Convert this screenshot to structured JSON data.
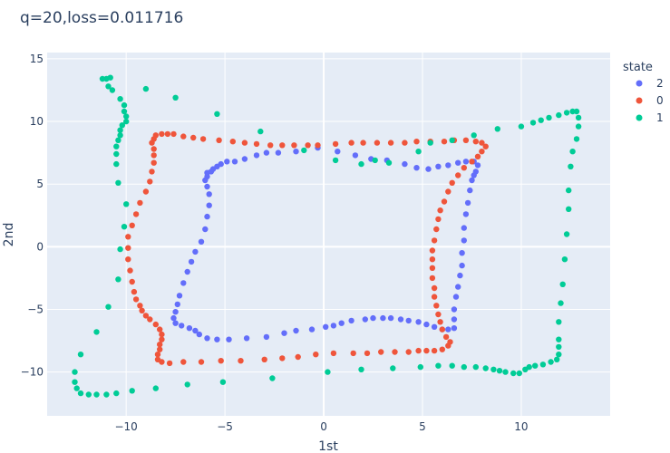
{
  "chart_data": {
    "type": "scatter",
    "title": "q=20,loss=0.011716",
    "xlabel": "1st",
    "ylabel": "2nd",
    "xlim": [
      -14,
      14.5
    ],
    "ylim": [
      -13.5,
      15.5
    ],
    "xticks": [
      -10,
      -5,
      0,
      5,
      10
    ],
    "yticks": [
      -10,
      -5,
      0,
      5,
      10,
      15
    ],
    "grid": true,
    "legend": {
      "title": "state",
      "placement": "right"
    },
    "series": [
      {
        "name": "2",
        "color": "#636efa",
        "points": [
          [
            -5.9,
            5.9
          ],
          [
            -5.7,
            6.0
          ],
          [
            -5.6,
            6.2
          ],
          [
            -5.4,
            6.4
          ],
          [
            -5.2,
            6.6
          ],
          [
            -4.9,
            6.8
          ],
          [
            -4.5,
            6.8
          ],
          [
            -4.0,
            7.0
          ],
          [
            -3.4,
            7.3
          ],
          [
            -2.9,
            7.5
          ],
          [
            -2.3,
            7.5
          ],
          [
            -1.4,
            7.6
          ],
          [
            -0.3,
            7.9
          ],
          [
            0.7,
            7.6
          ],
          [
            1.6,
            7.3
          ],
          [
            2.4,
            7.0
          ],
          [
            3.2,
            6.9
          ],
          [
            4.1,
            6.6
          ],
          [
            4.7,
            6.3
          ],
          [
            5.3,
            6.2
          ],
          [
            5.8,
            6.4
          ],
          [
            6.3,
            6.5
          ],
          [
            6.8,
            6.7
          ],
          [
            7.2,
            6.8
          ],
          [
            7.6,
            6.8
          ],
          [
            7.8,
            6.5
          ],
          [
            7.7,
            6.0
          ],
          [
            7.6,
            5.7
          ],
          [
            7.5,
            5.3
          ],
          [
            7.4,
            4.5
          ],
          [
            7.3,
            3.5
          ],
          [
            7.2,
            2.6
          ],
          [
            7.1,
            1.5
          ],
          [
            7.1,
            0.5
          ],
          [
            7.0,
            -0.5
          ],
          [
            7.0,
            -1.5
          ],
          [
            6.9,
            -2.3
          ],
          [
            6.8,
            -3.2
          ],
          [
            6.7,
            -4.0
          ],
          [
            6.6,
            -5.0
          ],
          [
            6.6,
            -5.8
          ],
          [
            6.6,
            -6.5
          ],
          [
            6.3,
            -6.6
          ],
          [
            6.0,
            -6.6
          ],
          [
            5.6,
            -6.4
          ],
          [
            5.2,
            -6.2
          ],
          [
            4.8,
            -6.0
          ],
          [
            4.3,
            -5.9
          ],
          [
            3.9,
            -5.8
          ],
          [
            3.4,
            -5.7
          ],
          [
            3.0,
            -5.7
          ],
          [
            2.5,
            -5.7
          ],
          [
            2.1,
            -5.8
          ],
          [
            1.4,
            -5.9
          ],
          [
            0.9,
            -6.1
          ],
          [
            0.5,
            -6.3
          ],
          [
            0.1,
            -6.4
          ],
          [
            -0.6,
            -6.6
          ],
          [
            -1.4,
            -6.7
          ],
          [
            -2.0,
            -6.9
          ],
          [
            -2.9,
            -7.2
          ],
          [
            -3.9,
            -7.3
          ],
          [
            -4.8,
            -7.4
          ],
          [
            -5.4,
            -7.4
          ],
          [
            -5.9,
            -7.3
          ],
          [
            -6.3,
            -7.0
          ],
          [
            -6.5,
            -6.7
          ],
          [
            -6.8,
            -6.5
          ],
          [
            -7.2,
            -6.3
          ],
          [
            -7.5,
            -6.1
          ],
          [
            -7.6,
            -5.7
          ],
          [
            -7.5,
            -5.2
          ],
          [
            -7.4,
            -4.6
          ],
          [
            -7.3,
            -3.9
          ],
          [
            -7.1,
            -2.9
          ],
          [
            -6.9,
            -2.0
          ],
          [
            -6.7,
            -1.2
          ],
          [
            -6.5,
            -0.4
          ],
          [
            -6.2,
            0.4
          ],
          [
            -6.0,
            1.4
          ],
          [
            -5.9,
            2.4
          ],
          [
            -5.8,
            3.3
          ],
          [
            -5.8,
            4.2
          ],
          [
            -5.9,
            4.8
          ],
          [
            -6.0,
            5.3
          ],
          [
            -5.9,
            5.6
          ]
        ]
      },
      {
        "name": "0",
        "color": "#ef553b",
        "points": [
          [
            -8.6,
            8.6
          ],
          [
            -8.5,
            8.9
          ],
          [
            -8.2,
            9.0
          ],
          [
            -7.9,
            9.0
          ],
          [
            -7.6,
            9.0
          ],
          [
            -7.1,
            8.8
          ],
          [
            -6.6,
            8.7
          ],
          [
            -6.1,
            8.6
          ],
          [
            -5.3,
            8.5
          ],
          [
            -4.6,
            8.4
          ],
          [
            -4.0,
            8.3
          ],
          [
            -3.4,
            8.2
          ],
          [
            -2.7,
            8.1
          ],
          [
            -2.1,
            8.1
          ],
          [
            -1.5,
            8.1
          ],
          [
            -0.8,
            8.1
          ],
          [
            -0.3,
            8.1
          ],
          [
            0.6,
            8.2
          ],
          [
            1.4,
            8.3
          ],
          [
            2.0,
            8.3
          ],
          [
            2.7,
            8.3
          ],
          [
            3.4,
            8.3
          ],
          [
            4.1,
            8.3
          ],
          [
            4.7,
            8.4
          ],
          [
            5.4,
            8.4
          ],
          [
            6.1,
            8.4
          ],
          [
            6.6,
            8.5
          ],
          [
            7.2,
            8.5
          ],
          [
            7.7,
            8.4
          ],
          [
            8.0,
            8.3
          ],
          [
            8.2,
            8.0
          ],
          [
            8.0,
            7.6
          ],
          [
            7.8,
            7.2
          ],
          [
            7.5,
            6.8
          ],
          [
            7.1,
            6.3
          ],
          [
            6.8,
            5.7
          ],
          [
            6.5,
            5.1
          ],
          [
            6.3,
            4.4
          ],
          [
            6.1,
            3.6
          ],
          [
            5.9,
            2.9
          ],
          [
            5.8,
            2.2
          ],
          [
            5.7,
            1.4
          ],
          [
            5.6,
            0.5
          ],
          [
            5.5,
            -0.3
          ],
          [
            5.5,
            -1.0
          ],
          [
            5.5,
            -1.7
          ],
          [
            5.5,
            -2.5
          ],
          [
            5.6,
            -3.3
          ],
          [
            5.6,
            -4.0
          ],
          [
            5.7,
            -4.7
          ],
          [
            5.8,
            -5.4
          ],
          [
            5.9,
            -6.0
          ],
          [
            6.0,
            -6.6
          ],
          [
            6.2,
            -7.2
          ],
          [
            6.4,
            -7.6
          ],
          [
            6.3,
            -7.9
          ],
          [
            6.0,
            -8.2
          ],
          [
            5.6,
            -8.3
          ],
          [
            5.2,
            -8.3
          ],
          [
            4.8,
            -8.3
          ],
          [
            4.3,
            -8.4
          ],
          [
            3.6,
            -8.4
          ],
          [
            2.9,
            -8.4
          ],
          [
            2.2,
            -8.5
          ],
          [
            1.5,
            -8.5
          ],
          [
            0.5,
            -8.5
          ],
          [
            -0.4,
            -8.6
          ],
          [
            -1.3,
            -8.8
          ],
          [
            -2.1,
            -8.9
          ],
          [
            -3.0,
            -9.0
          ],
          [
            -4.2,
            -9.1
          ],
          [
            -5.2,
            -9.1
          ],
          [
            -6.2,
            -9.2
          ],
          [
            -7.1,
            -9.2
          ],
          [
            -7.8,
            -9.3
          ],
          [
            -8.2,
            -9.2
          ],
          [
            -8.4,
            -9.0
          ],
          [
            -8.4,
            -8.6
          ],
          [
            -8.3,
            -8.2
          ],
          [
            -8.3,
            -7.8
          ],
          [
            -8.2,
            -7.4
          ],
          [
            -8.2,
            -7.0
          ],
          [
            -8.3,
            -6.6
          ],
          [
            -8.5,
            -6.2
          ],
          [
            -8.8,
            -5.8
          ],
          [
            -9.0,
            -5.5
          ],
          [
            -9.2,
            -5.1
          ],
          [
            -9.3,
            -4.7
          ],
          [
            -9.5,
            -4.2
          ],
          [
            -9.6,
            -3.6
          ],
          [
            -9.7,
            -2.8
          ],
          [
            -9.8,
            -1.9
          ],
          [
            -9.9,
            -1.0
          ],
          [
            -9.9,
            -0.1
          ],
          [
            -9.9,
            0.8
          ],
          [
            -9.7,
            1.7
          ],
          [
            -9.5,
            2.6
          ],
          [
            -9.3,
            3.5
          ],
          [
            -9.0,
            4.4
          ],
          [
            -8.8,
            5.2
          ],
          [
            -8.7,
            6.0
          ],
          [
            -8.6,
            6.7
          ],
          [
            -8.6,
            7.3
          ],
          [
            -8.6,
            7.8
          ],
          [
            -8.7,
            8.3
          ]
        ]
      },
      {
        "name": "1",
        "color": "#00cc96",
        "points": [
          [
            -11.2,
            13.4
          ],
          [
            -11.0,
            13.4
          ],
          [
            -10.8,
            13.5
          ],
          [
            -10.9,
            12.8
          ],
          [
            -10.7,
            12.5
          ],
          [
            -10.3,
            11.8
          ],
          [
            -10.1,
            11.3
          ],
          [
            -10.1,
            10.8
          ],
          [
            -10.0,
            10.4
          ],
          [
            -10.0,
            10.0
          ],
          [
            -10.2,
            9.7
          ],
          [
            -10.3,
            9.3
          ],
          [
            -10.3,
            8.9
          ],
          [
            -10.4,
            8.5
          ],
          [
            -10.5,
            8.0
          ],
          [
            -10.5,
            7.4
          ],
          [
            -10.5,
            6.6
          ],
          [
            -10.4,
            5.1
          ],
          [
            -10.0,
            3.4
          ],
          [
            -10.1,
            1.6
          ],
          [
            -10.3,
            -0.2
          ],
          [
            -10.4,
            -2.6
          ],
          [
            -10.9,
            -4.8
          ],
          [
            -11.5,
            -6.8
          ],
          [
            -12.3,
            -8.6
          ],
          [
            -12.6,
            -10.0
          ],
          [
            -12.6,
            -10.8
          ],
          [
            -12.5,
            -11.3
          ],
          [
            -12.3,
            -11.7
          ],
          [
            -11.9,
            -11.8
          ],
          [
            -11.5,
            -11.8
          ],
          [
            -11.0,
            -11.8
          ],
          [
            -10.5,
            -11.7
          ],
          [
            -9.7,
            -11.5
          ],
          [
            -8.5,
            -11.3
          ],
          [
            -6.9,
            -11.0
          ],
          [
            -5.1,
            -10.8
          ],
          [
            -2.6,
            -10.5
          ],
          [
            0.2,
            -10.0
          ],
          [
            1.9,
            -9.8
          ],
          [
            3.5,
            -9.7
          ],
          [
            4.9,
            -9.6
          ],
          [
            5.8,
            -9.5
          ],
          [
            6.5,
            -9.5
          ],
          [
            7.1,
            -9.6
          ],
          [
            7.7,
            -9.6
          ],
          [
            8.2,
            -9.7
          ],
          [
            8.6,
            -9.8
          ],
          [
            8.9,
            -9.9
          ],
          [
            9.2,
            -10.0
          ],
          [
            9.6,
            -10.1
          ],
          [
            9.9,
            -10.1
          ],
          [
            10.2,
            -9.8
          ],
          [
            10.4,
            -9.6
          ],
          [
            10.7,
            -9.5
          ],
          [
            11.1,
            -9.4
          ],
          [
            11.5,
            -9.2
          ],
          [
            11.8,
            -9.0
          ],
          [
            11.9,
            -8.6
          ],
          [
            11.9,
            -8.0
          ],
          [
            11.9,
            -7.4
          ],
          [
            11.9,
            -6.0
          ],
          [
            12.0,
            -4.5
          ],
          [
            12.1,
            -3.0
          ],
          [
            12.2,
            -1.0
          ],
          [
            12.3,
            1.0
          ],
          [
            12.4,
            3.0
          ],
          [
            12.4,
            4.5
          ],
          [
            12.5,
            6.4
          ],
          [
            12.6,
            7.6
          ],
          [
            12.8,
            8.6
          ],
          [
            12.9,
            9.6
          ],
          [
            12.9,
            10.3
          ],
          [
            12.8,
            10.8
          ],
          [
            12.6,
            10.8
          ],
          [
            12.3,
            10.7
          ],
          [
            11.9,
            10.5
          ],
          [
            11.4,
            10.3
          ],
          [
            11.0,
            10.1
          ],
          [
            10.6,
            9.9
          ],
          [
            10.0,
            9.6
          ],
          [
            8.8,
            9.4
          ],
          [
            7.6,
            8.9
          ],
          [
            6.5,
            8.5
          ],
          [
            5.4,
            8.3
          ],
          [
            4.8,
            7.6
          ],
          [
            3.3,
            6.7
          ],
          [
            2.6,
            6.9
          ],
          [
            1.9,
            6.6
          ],
          [
            0.6,
            6.9
          ],
          [
            -1.0,
            7.7
          ],
          [
            -3.2,
            9.2
          ],
          [
            -5.4,
            10.6
          ],
          [
            -7.5,
            11.9
          ],
          [
            -9.0,
            12.6
          ]
        ]
      }
    ]
  }
}
